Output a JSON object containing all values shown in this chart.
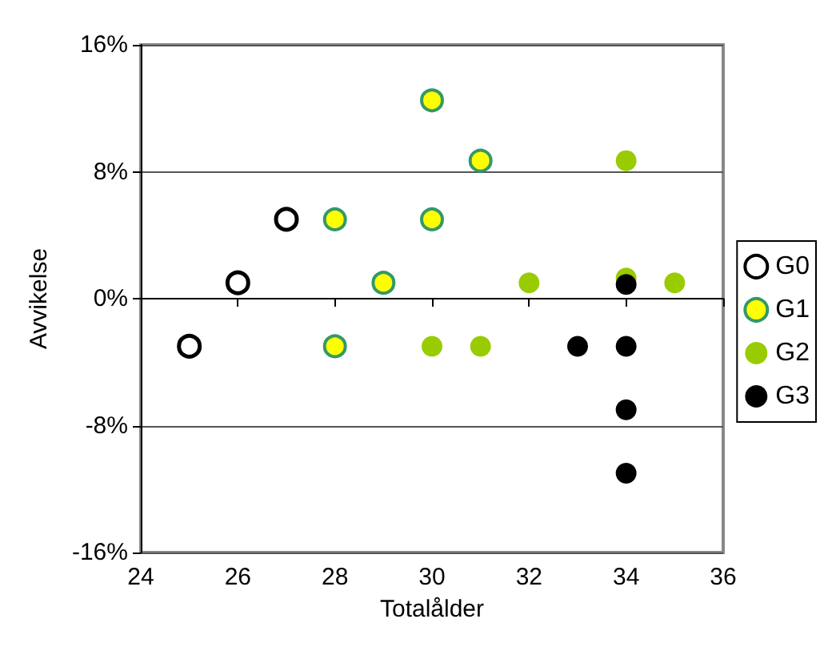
{
  "chart_data": {
    "type": "scatter",
    "xlabel": "Totalålder",
    "ylabel": "Avvikelse",
    "xlim": [
      24,
      36
    ],
    "xticks": [
      24,
      26,
      28,
      30,
      32,
      34,
      36
    ],
    "ylim": [
      -16,
      16
    ],
    "yticks": [
      {
        "value": -16,
        "label": "-16%"
      },
      {
        "value": -8,
        "label": "-8%"
      },
      {
        "value": 0,
        "label": "0%"
      },
      {
        "value": 8,
        "label": "8%"
      },
      {
        "value": 16,
        "label": "16%"
      }
    ],
    "grid": "y",
    "legend": "right",
    "marker": "circle",
    "series": [
      {
        "name": "G0",
        "color": "#000000",
        "x": [
          25,
          26,
          27
        ],
        "values": [
          -3,
          1,
          5
        ]
      },
      {
        "name": "G1",
        "color": "#ffff00",
        "x": [
          28,
          28,
          29,
          30,
          30,
          31
        ],
        "values": [
          5,
          -3,
          1,
          12.5,
          5,
          8.7
        ]
      },
      {
        "name": "G2",
        "color": "#99cc00",
        "x": [
          30,
          31,
          32,
          34,
          34,
          35
        ],
        "values": [
          -3,
          -3,
          1,
          8.7,
          1.3,
          1
        ]
      },
      {
        "name": "G3",
        "color": "#000000",
        "x": [
          33,
          34,
          34,
          34,
          34
        ],
        "values": [
          -3,
          -3,
          0.9,
          -7,
          -11
        ]
      }
    ]
  }
}
